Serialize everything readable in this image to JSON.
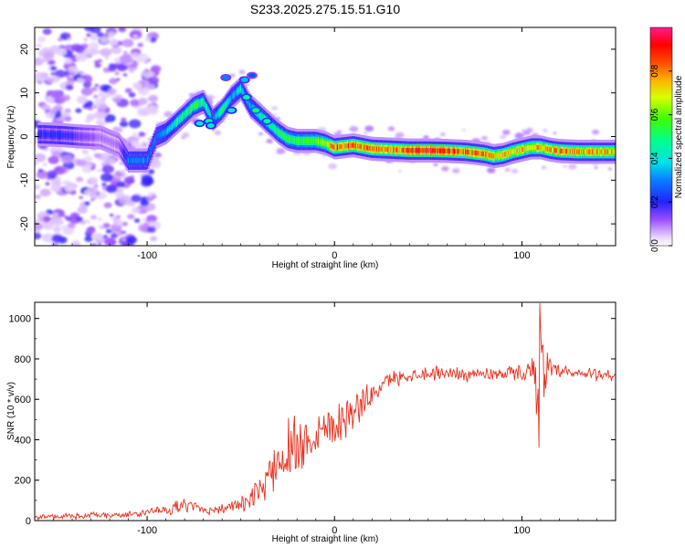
{
  "chart_data": [
    {
      "type": "heatmap",
      "title": "S233.2025.275.15.51.G10",
      "xlabel": "Height of straight line (km)",
      "ylabel": "Frequency (Hz)",
      "xlim": [
        -160,
        150
      ],
      "ylim": [
        -25,
        25
      ],
      "xticks": [
        -100,
        0,
        100
      ],
      "xtick_labels": [
        "-100",
        "0",
        "100"
      ],
      "yticks": [
        -20,
        -10,
        0,
        10,
        20
      ],
      "ytick_labels": [
        "-20",
        "-10",
        "0",
        "10",
        "20"
      ],
      "ridge": {
        "x": [
          -155,
          -145,
          -135,
          -125,
          -115,
          -110,
          -105,
          -100,
          -95,
          -90,
          -85,
          -80,
          -75,
          -70,
          -65,
          -60,
          -55,
          -50,
          -45,
          -40,
          -35,
          -30,
          -25,
          -20,
          -15,
          -10,
          -5,
          0,
          10,
          20,
          30,
          40,
          50,
          60,
          70,
          80,
          85,
          90,
          95,
          100,
          105,
          110,
          115,
          120,
          130,
          140,
          150
        ],
        "y": [
          0.5,
          0.3,
          0,
          -0.2,
          -2,
          -5.5,
          -5.5,
          -5.5,
          0,
          1,
          3,
          5,
          7,
          8,
          4,
          6,
          9,
          11,
          7,
          5,
          3,
          1,
          -0.5,
          -1,
          -1,
          -1,
          -1.5,
          -2.5,
          -2,
          -2.8,
          -3,
          -3.2,
          -3.2,
          -3.3,
          -3.5,
          -4,
          -4.5,
          -4.2,
          -3.5,
          -3,
          -2.5,
          -2.5,
          -3,
          -3.3,
          -3.5,
          -3.5,
          -3.5
        ],
        "amplitude": [
          0.2,
          0.2,
          0.15,
          0.1,
          0.1,
          0.3,
          0.3,
          0.3,
          0.3,
          0.35,
          0.45,
          0.5,
          0.55,
          0.5,
          0.3,
          0.5,
          0.35,
          0.4,
          0.35,
          0.45,
          0.5,
          0.5,
          0.55,
          0.55,
          0.55,
          0.6,
          0.65,
          0.85,
          0.85,
          0.85,
          0.8,
          0.85,
          0.9,
          0.9,
          0.85,
          0.85,
          0.75,
          0.75,
          0.7,
          0.75,
          0.75,
          0.75,
          0.8,
          0.8,
          0.8,
          0.8,
          0.8
        ]
      },
      "colorbar": {
        "label": "Normalized spectral amplitude",
        "range": [
          0,
          1
        ],
        "ticks": [
          0.0,
          0.2,
          0.4,
          0.6,
          0.8
        ],
        "tick_labels": [
          "0.0",
          "0.2",
          "0.4",
          "0.6",
          "0.8"
        ]
      }
    },
    {
      "type": "line",
      "xlabel": "Height of straight line (km)",
      "ylabel": "SNR (10 * v/v)",
      "xlim": [
        -160,
        150
      ],
      "ylim": [
        0,
        1080
      ],
      "xticks": [
        -100,
        0,
        100
      ],
      "xtick_labels": [
        "-100",
        "0",
        "100"
      ],
      "yticks": [
        0,
        200,
        400,
        600,
        800,
        1000
      ],
      "ytick_labels": [
        "0",
        "200",
        "400",
        "600",
        "800",
        "1000"
      ],
      "series": [
        {
          "name": "SNR",
          "color": "#e8301e",
          "x": [
            -160,
            -150,
            -140,
            -130,
            -120,
            -110,
            -100,
            -95,
            -90,
            -85,
            -80,
            -75,
            -70,
            -65,
            -60,
            -55,
            -50,
            -45,
            -40,
            -35,
            -30,
            -25,
            -20,
            -15,
            -10,
            -5,
            0,
            5,
            10,
            15,
            20,
            25,
            30,
            40,
            50,
            60,
            70,
            80,
            90,
            100,
            105,
            108,
            110,
            112,
            115,
            120,
            130,
            140,
            150
          ],
          "y": [
            20,
            20,
            22,
            25,
            25,
            30,
            40,
            45,
            55,
            65,
            75,
            70,
            55,
            55,
            60,
            70,
            75,
            100,
            150,
            220,
            300,
            350,
            380,
            400,
            440,
            460,
            490,
            510,
            540,
            580,
            620,
            670,
            700,
            720,
            730,
            730,
            725,
            725,
            730,
            730,
            740,
            730,
            720,
            750,
            740,
            730,
            725,
            725,
            720
          ],
          "noise": [
            15,
            15,
            15,
            15,
            15,
            15,
            20,
            25,
            30,
            30,
            30,
            30,
            25,
            25,
            25,
            30,
            35,
            50,
            70,
            100,
            160,
            170,
            170,
            150,
            130,
            120,
            110,
            110,
            100,
            80,
            60,
            40,
            40,
            35,
            35,
            35,
            35,
            35,
            35,
            40,
            60,
            200,
            300,
            150,
            60,
            40,
            35,
            35,
            35
          ],
          "peak": {
            "x": 109.5,
            "y": 1075
          },
          "trough": {
            "x": 109,
            "y": 360
          }
        }
      ]
    }
  ],
  "palette": {
    "line": "#e8301e",
    "axes": "#000000",
    "background": "#ffffff"
  }
}
